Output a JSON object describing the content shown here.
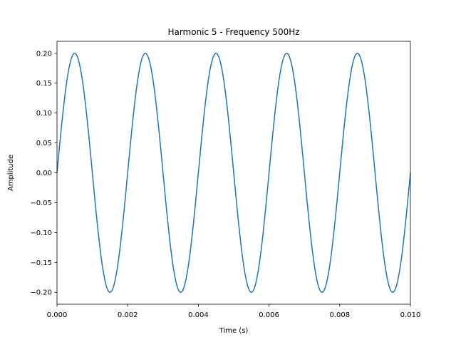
{
  "chart_data": {
    "type": "line",
    "title": "Harmonic 5 - Frequency 500Hz",
    "xlabel": "Time (s)",
    "ylabel": "Amplitude",
    "xlim": [
      0.0,
      0.01
    ],
    "ylim": [
      -0.22,
      0.22
    ],
    "xticks": [
      "0.000",
      "0.002",
      "0.004",
      "0.006",
      "0.008",
      "0.010"
    ],
    "yticks": [
      "−0.20",
      "−0.15",
      "−0.10",
      "−0.05",
      "0.00",
      "0.05",
      "0.10",
      "0.15",
      "0.20"
    ],
    "grid": false,
    "series": [
      {
        "color": "#1f77b4",
        "function": "sine",
        "amplitude": 0.2,
        "frequency_hz": 500,
        "x_start": 0.0,
        "x_end": 0.01
      }
    ]
  }
}
